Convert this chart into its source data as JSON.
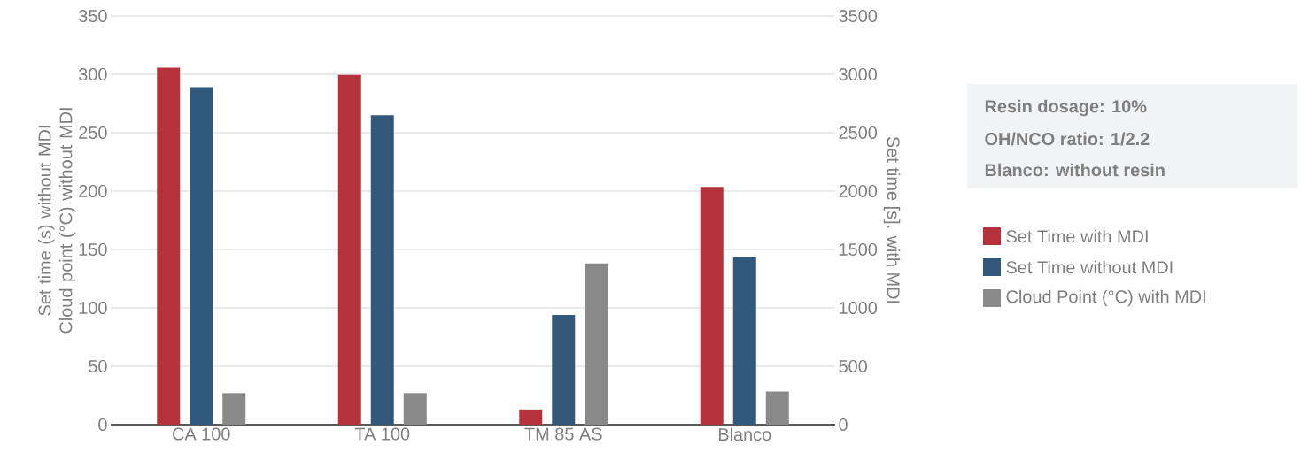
{
  "chart_data": {
    "type": "bar",
    "categories": [
      "CA 100",
      "TA 100",
      "TM 85 AS",
      "Blanco"
    ],
    "series": [
      {
        "name": "Set Time with MDI",
        "color": "#b5323c",
        "axis": "y2",
        "values": [
          3056,
          2995,
          130,
          2036
        ]
      },
      {
        "name": "Set Time without MDI",
        "color": "#32587c",
        "values": [
          289,
          265,
          94,
          143.5
        ]
      },
      {
        "name": "Cloud Point (°C) with MDI",
        "color": "#898989",
        "values": [
          27,
          27,
          138,
          28.5
        ]
      }
    ],
    "ylabel": "Set time (s) without MDI Cloud point (°C) without MDI",
    "y2label": "Set time [s]. with MDI",
    "ylim": [
      0,
      350
    ],
    "yticks": [
      0,
      50,
      100,
      150,
      200,
      250,
      300,
      350
    ],
    "y2lim": [
      0,
      3500
    ],
    "y2ticks": [
      0,
      500,
      1000,
      1500,
      2000,
      2500,
      3000,
      3500
    ],
    "grid": "y",
    "legend": "right",
    "annotations": [
      "Resin dosage: 10%",
      "OH/NCO ratio: 1/2.2",
      "Blanco: without resin"
    ]
  }
}
